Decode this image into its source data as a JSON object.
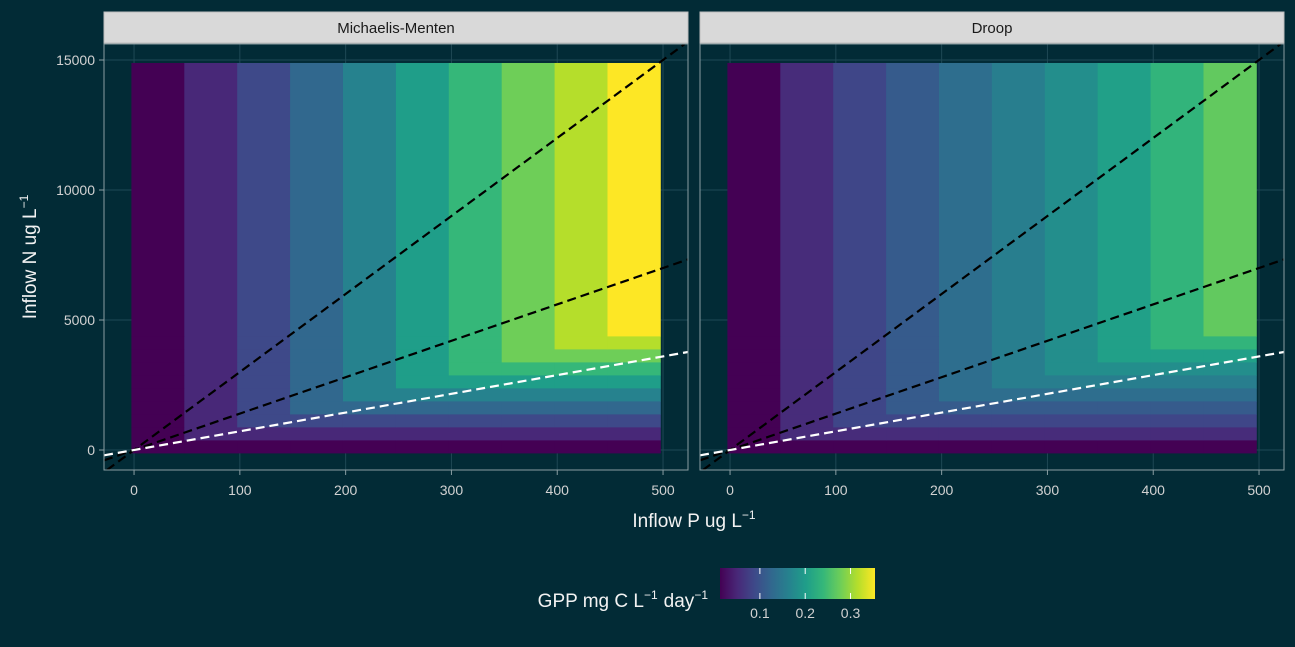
{
  "chart_data": {
    "type": "heatmap",
    "x_label": {
      "text": "Inflow P ug L",
      "sup": "−1"
    },
    "y_label": {
      "text": "Inflow N ug L",
      "sup": "−1"
    },
    "legend_title": [
      {
        "text": "GPP mg C L",
        "sup": "−1"
      },
      {
        "text": "day",
        "sup": "−1"
      }
    ],
    "palette": [
      "#440154",
      "#482878",
      "#3e4989",
      "#31688e",
      "#26828e",
      "#1f9e89",
      "#35b779",
      "#6ece58",
      "#b5de2b",
      "#fde725"
    ],
    "color_lim": [
      0.012,
      0.354
    ],
    "color_ticks": [
      0.1,
      0.2,
      0.3
    ],
    "xlim": [
      -28.4,
      523.6
    ],
    "ylim": [
      -769,
      15615
    ],
    "xticks": [
      0,
      100,
      200,
      300,
      400,
      500
    ],
    "yticks": [
      0,
      5000,
      10000,
      15000
    ],
    "grid": true,
    "x_edges": [
      -2.5,
      47.5,
      97.5,
      147.5,
      197.5,
      247.5,
      297.5,
      347.5,
      397.5,
      447.5,
      497.5
    ],
    "y_edges": [
      -115,
      385,
      885,
      1385,
      1885,
      2385,
      2885,
      3385,
      3885,
      4385,
      14885
    ],
    "lines": [
      {
        "color": "#000000",
        "x": [
          -25.6,
          520.5
        ],
        "y": [
          -768,
          15615
        ]
      },
      {
        "color": "#000000",
        "x": [
          -28.4,
          523.6
        ],
        "y": [
          -397.6,
          7330.4
        ]
      },
      {
        "color": "#ffffff",
        "x": [
          -28.4,
          523.6
        ],
        "y": [
          -204.5,
          3769.9
        ]
      }
    ],
    "facets": [
      {
        "strip": "Michaelis-Menten",
        "z": [
          [
            0.012,
            0.012,
            0.012,
            0.012,
            0.012,
            0.012,
            0.012,
            0.012,
            0.012,
            0.012
          ],
          [
            0.012,
            0.05,
            0.05,
            0.05,
            0.05,
            0.05,
            0.05,
            0.05,
            0.05,
            0.05
          ],
          [
            0.012,
            0.05,
            0.088,
            0.088,
            0.088,
            0.088,
            0.088,
            0.088,
            0.088,
            0.088
          ],
          [
            0.012,
            0.05,
            0.088,
            0.126,
            0.126,
            0.126,
            0.126,
            0.126,
            0.126,
            0.126
          ],
          [
            0.012,
            0.05,
            0.088,
            0.126,
            0.164,
            0.164,
            0.164,
            0.164,
            0.164,
            0.164
          ],
          [
            0.012,
            0.05,
            0.088,
            0.126,
            0.164,
            0.202,
            0.202,
            0.202,
            0.202,
            0.202
          ],
          [
            0.012,
            0.05,
            0.088,
            0.126,
            0.164,
            0.202,
            0.24,
            0.24,
            0.24,
            0.24
          ],
          [
            0.012,
            0.05,
            0.088,
            0.126,
            0.164,
            0.202,
            0.24,
            0.278,
            0.278,
            0.278
          ],
          [
            0.012,
            0.05,
            0.088,
            0.126,
            0.164,
            0.202,
            0.24,
            0.278,
            0.316,
            0.316
          ],
          [
            0.012,
            0.05,
            0.088,
            0.126,
            0.164,
            0.202,
            0.24,
            0.278,
            0.316,
            0.354
          ]
        ]
      },
      {
        "strip": "Droop",
        "z": [
          [
            0.012,
            0.012,
            0.012,
            0.012,
            0.012,
            0.012,
            0.012,
            0.012,
            0.012,
            0.012
          ],
          [
            0.012,
            0.055,
            0.055,
            0.055,
            0.055,
            0.055,
            0.055,
            0.055,
            0.055,
            0.055
          ],
          [
            0.012,
            0.055,
            0.085,
            0.085,
            0.085,
            0.085,
            0.085,
            0.085,
            0.085,
            0.085
          ],
          [
            0.012,
            0.055,
            0.085,
            0.11,
            0.11,
            0.11,
            0.11,
            0.11,
            0.11,
            0.11
          ],
          [
            0.012,
            0.055,
            0.085,
            0.11,
            0.135,
            0.135,
            0.135,
            0.135,
            0.135,
            0.135
          ],
          [
            0.012,
            0.055,
            0.085,
            0.11,
            0.135,
            0.158,
            0.158,
            0.158,
            0.158,
            0.158
          ],
          [
            0.012,
            0.055,
            0.085,
            0.11,
            0.135,
            0.158,
            0.18,
            0.18,
            0.18,
            0.18
          ],
          [
            0.012,
            0.055,
            0.085,
            0.11,
            0.135,
            0.158,
            0.18,
            0.205,
            0.205,
            0.205
          ],
          [
            0.012,
            0.055,
            0.085,
            0.11,
            0.135,
            0.158,
            0.18,
            0.205,
            0.235,
            0.235
          ],
          [
            0.012,
            0.055,
            0.085,
            0.11,
            0.135,
            0.158,
            0.18,
            0.205,
            0.235,
            0.27
          ]
        ]
      }
    ]
  }
}
